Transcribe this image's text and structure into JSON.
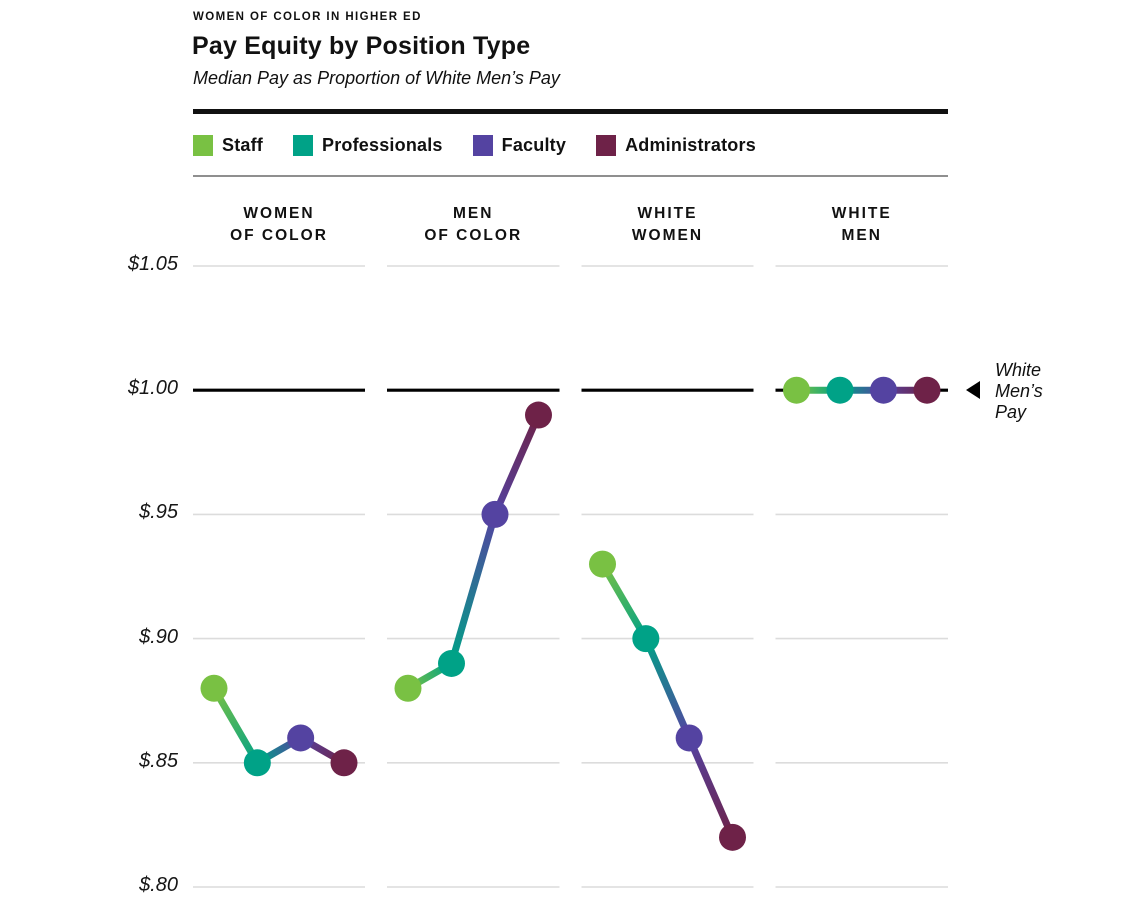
{
  "header": {
    "eyebrow": "WOMEN OF COLOR IN HIGHER ED",
    "title": "Pay Equity by Position Type",
    "subtitle": "Median Pay as Proportion of White Men’s Pay"
  },
  "annotation": {
    "lines": [
      "White",
      "Men’s",
      "Pay"
    ]
  },
  "chart_data": {
    "type": "line",
    "title": "Pay Equity by Position Type",
    "subtitle": "Median Pay as Proportion of White Men’s Pay",
    "categories": [
      "Women of Color",
      "Men of Color",
      "White Women",
      "White Men"
    ],
    "column_labels": [
      {
        "line1": "WOMEN",
        "line2": "OF COLOR"
      },
      {
        "line1": "MEN",
        "line2": "OF COLOR"
      },
      {
        "line1": "WHITE",
        "line2": "WOMEN"
      },
      {
        "line1": "WHITE",
        "line2": "MEN"
      }
    ],
    "series": [
      {
        "name": "Staff",
        "color": "#79C143",
        "values": [
          0.88,
          0.88,
          0.93,
          1.0
        ]
      },
      {
        "name": "Professionals",
        "color": "#00A287",
        "values": [
          0.85,
          0.89,
          0.9,
          1.0
        ]
      },
      {
        "name": "Faculty",
        "color": "#5443A1",
        "values": [
          0.86,
          0.95,
          0.86,
          1.0
        ]
      },
      {
        "name": "Administrators",
        "color": "#6E2248",
        "values": [
          0.85,
          0.99,
          0.82,
          1.0
        ]
      }
    ],
    "y_ticks": [
      {
        "label": "$1.05",
        "value": 1.05
      },
      {
        "label": "$1.00",
        "value": 1.0
      },
      {
        "label": "$.95",
        "value": 0.95
      },
      {
        "label": "$.90",
        "value": 0.9
      },
      {
        "label": "$.85",
        "value": 0.85
      },
      {
        "label": "$.80",
        "value": 0.8
      }
    ],
    "ylim": [
      0.8,
      1.05
    ],
    "grid": true,
    "grid_color": "#DCDCDC",
    "reference_line": {
      "value": 1.0,
      "color": "#000000",
      "label": "White Men’s Pay"
    },
    "legend_position": "top"
  }
}
